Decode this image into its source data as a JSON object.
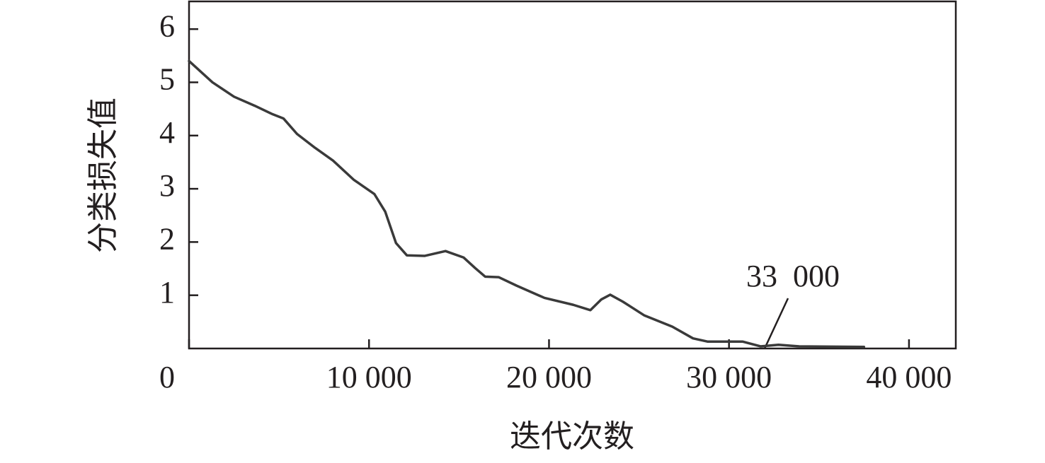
{
  "chart_data": {
    "type": "line",
    "x_label": "迭代次数",
    "y_label": "分类损失值",
    "x": [
      0,
      1300,
      2500,
      3650,
      4650,
      5250,
      6000,
      7000,
      8000,
      9150,
      10300,
      10900,
      11500,
      12100,
      13100,
      14250,
      15250,
      15900,
      16450,
      17200,
      18200,
      19750,
      21350,
      22300,
      22900,
      23400,
      24100,
      25300,
      26850,
      28000,
      28800,
      30750,
      31750,
      32750,
      33900,
      37500
    ],
    "series": [
      {
        "color": "#3a3a3a",
        "values": [
          5.4,
          5.0,
          4.73,
          4.56,
          4.4,
          4.32,
          4.03,
          3.77,
          3.53,
          3.17,
          2.9,
          2.57,
          1.98,
          1.75,
          1.74,
          1.83,
          1.71,
          1.51,
          1.35,
          1.34,
          1.18,
          0.95,
          0.82,
          0.72,
          0.92,
          1.01,
          0.88,
          0.62,
          0.41,
          0.19,
          0.13,
          0.13,
          0.04,
          0.07,
          0.04,
          0.03
        ]
      }
    ],
    "xlim": [
      0,
      42600
    ],
    "ylim": [
      0,
      6.52
    ],
    "xticks": [
      0,
      {
        "value": 10000,
        "label": "10 000"
      },
      {
        "value": 20000,
        "label": "20 000"
      },
      {
        "value": 30000,
        "label": "30 000"
      },
      {
        "value": 40000,
        "label": "40 000"
      }
    ],
    "yticks": [
      1,
      2,
      3,
      4,
      5,
      6
    ],
    "annotation": "33  000"
  }
}
